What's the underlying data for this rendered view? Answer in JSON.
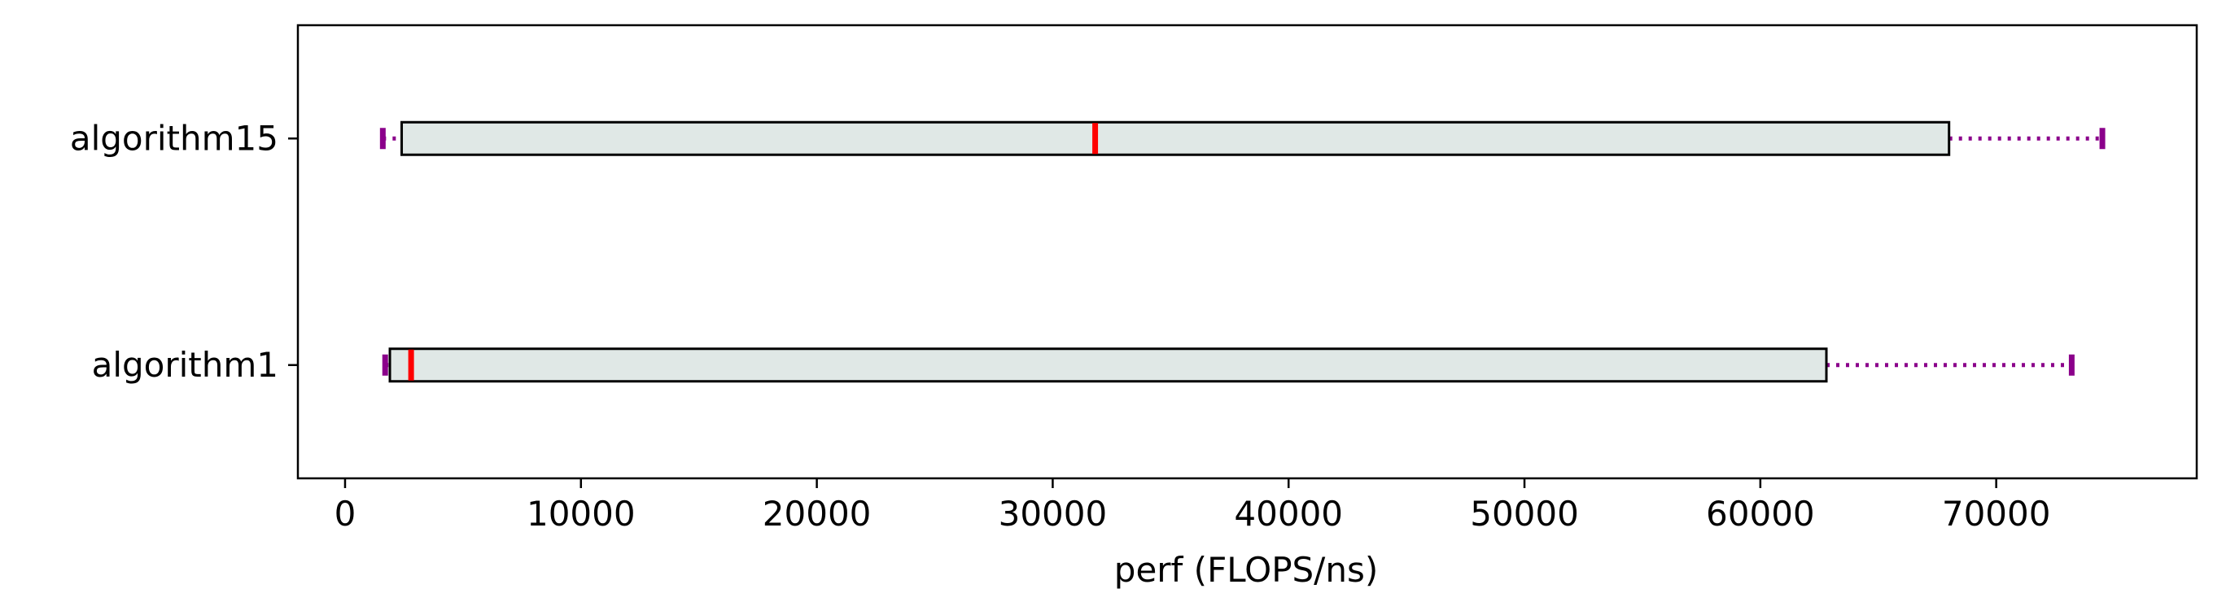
{
  "chart_data": {
    "type": "boxplot",
    "orientation": "horizontal",
    "title": "",
    "xlabel": "perf (FLOPS/ns)",
    "ylabel": "",
    "xlim": [
      -2000,
      78500
    ],
    "xticks": [
      0,
      10000,
      20000,
      30000,
      40000,
      50000,
      60000,
      70000
    ],
    "xtick_labels": [
      "0",
      "10000",
      "20000",
      "30000",
      "40000",
      "50000",
      "60000",
      "70000"
    ],
    "categories": [
      "algorithm1",
      "algorithm15"
    ],
    "boxes": [
      {
        "category": "algorithm1",
        "whisker_low": 1700,
        "q1": 1900,
        "median": 2800,
        "q3": 62800,
        "whisker_high": 73200
      },
      {
        "category": "algorithm15",
        "whisker_low": 1600,
        "q1": 2400,
        "median": 31800,
        "q3": 68000,
        "whisker_high": 74500
      }
    ],
    "grid": false,
    "colors": {
      "box_fill": "#e0e8e6",
      "box_edge": "#000000",
      "median": "#ff0000",
      "whisker": "#8b008b"
    }
  }
}
